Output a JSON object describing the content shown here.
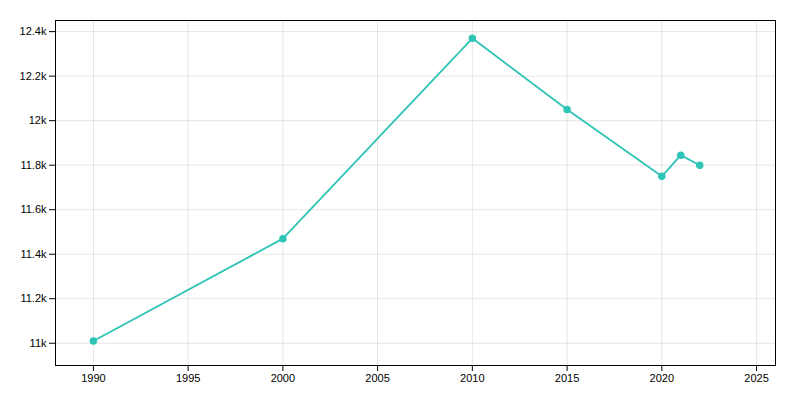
{
  "chart_data": {
    "type": "line",
    "x": [
      1990,
      2000,
      2010,
      2015,
      2020,
      2021,
      2022
    ],
    "values": [
      11010,
      11470,
      12370,
      12050,
      11750,
      11845,
      11800
    ],
    "color": "#2ec4b6",
    "marker": "circle",
    "xlim": [
      1988,
      2026
    ],
    "ylim": [
      10900,
      12450
    ],
    "xticks": [
      1990,
      1995,
      2000,
      2005,
      2010,
      2015,
      2020,
      2025
    ],
    "yticks": [
      {
        "value": 11000,
        "label": "11k"
      },
      {
        "value": 11200,
        "label": "11.2k"
      },
      {
        "value": 11400,
        "label": "11.4k"
      },
      {
        "value": 11600,
        "label": "11.6k"
      },
      {
        "value": 11800,
        "label": "11.8k"
      },
      {
        "value": 12000,
        "label": "12k"
      },
      {
        "value": 12200,
        "label": "12.2k"
      },
      {
        "value": 12400,
        "label": "12.4k"
      }
    ],
    "grid": true
  }
}
